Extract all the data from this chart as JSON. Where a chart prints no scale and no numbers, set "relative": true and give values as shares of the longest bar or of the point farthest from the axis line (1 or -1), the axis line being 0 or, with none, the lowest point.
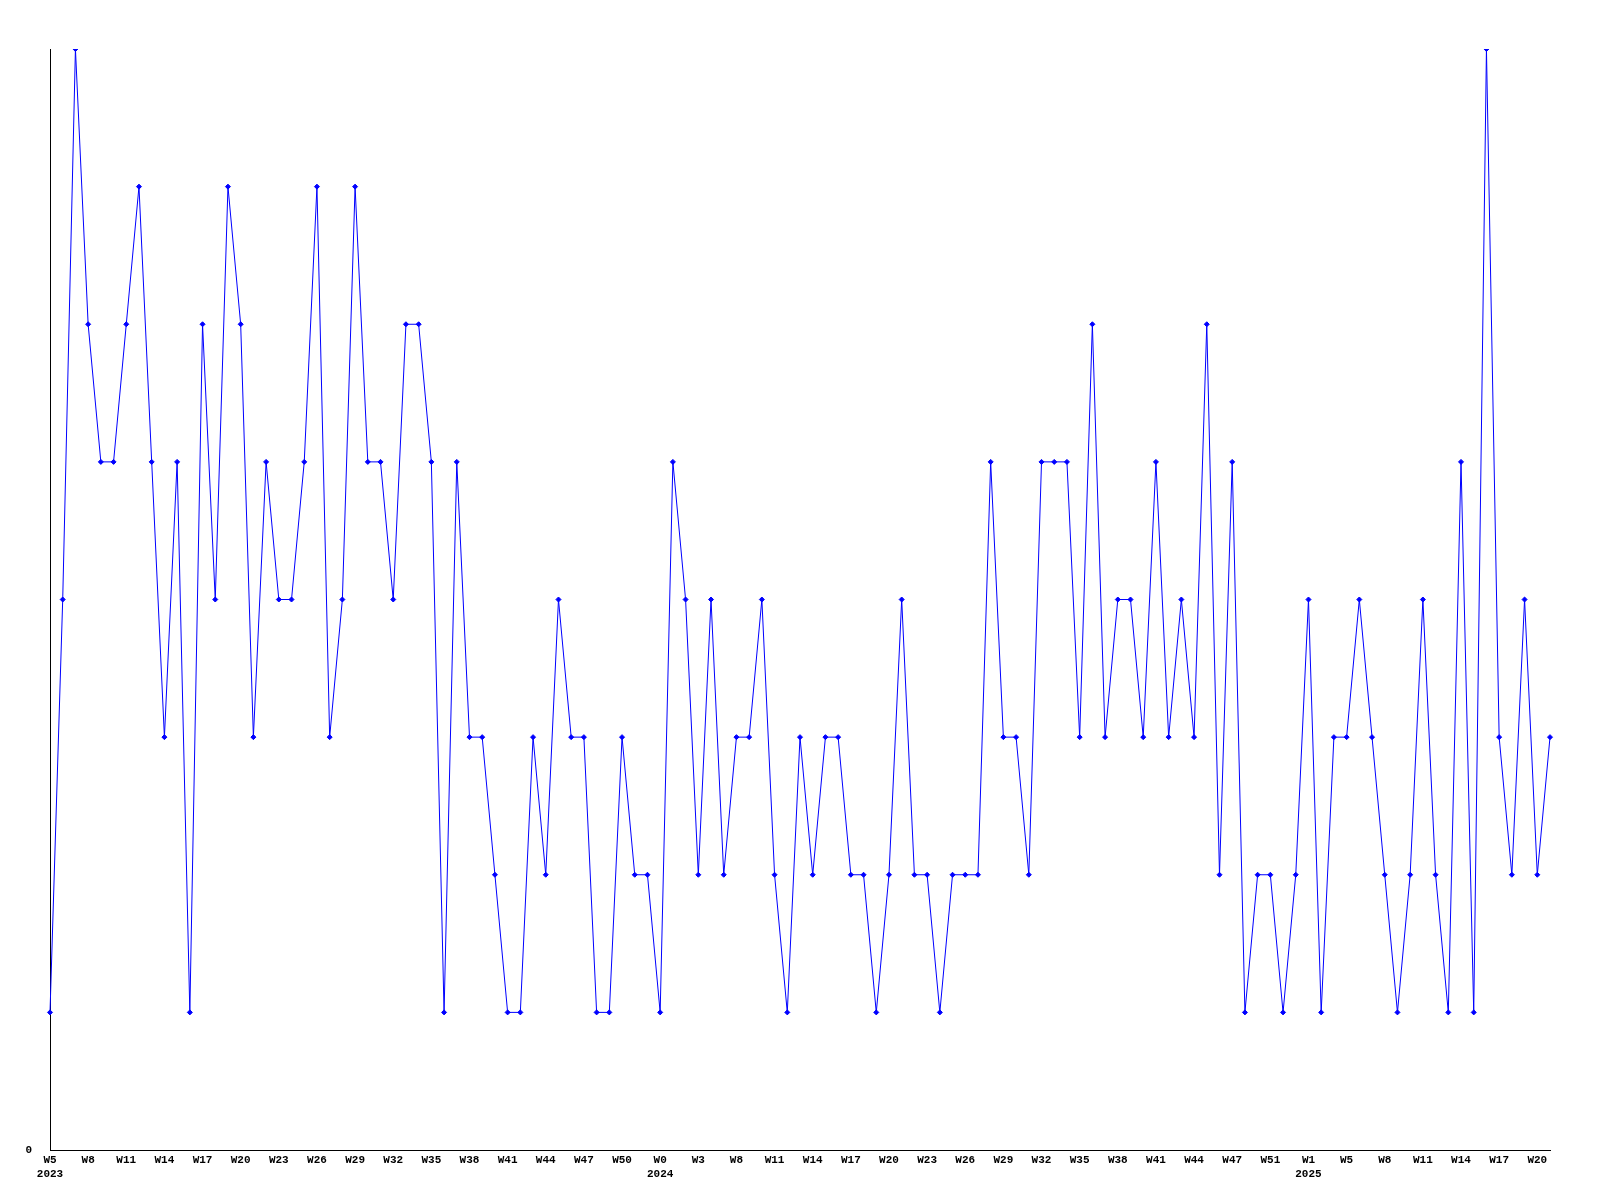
{
  "chart_data": {
    "type": "line",
    "relative": true,
    "annotations": [
      "0"
    ],
    "color": "#0000ff",
    "marker": "diamond",
    "grid": false,
    "legend": false,
    "categories": [
      "W5\n2023",
      null,
      null,
      "W8",
      null,
      null,
      "W11",
      null,
      null,
      "W14",
      null,
      null,
      "W17",
      null,
      null,
      "W20",
      null,
      null,
      "W23",
      null,
      null,
      "W26",
      null,
      null,
      "W29",
      null,
      null,
      "W32",
      null,
      null,
      "W35",
      null,
      null,
      "W38",
      null,
      null,
      "W41",
      null,
      null,
      "W44",
      null,
      null,
      "W47",
      null,
      null,
      "W50",
      null,
      null,
      "W0\n2024",
      null,
      null,
      "W3",
      null,
      null,
      "W8",
      null,
      null,
      "W11",
      null,
      null,
      "W14",
      null,
      null,
      "W17",
      null,
      null,
      "W20",
      null,
      null,
      "W23",
      null,
      null,
      "W26",
      null,
      null,
      "W29",
      null,
      null,
      "W32",
      null,
      null,
      "W35",
      null,
      null,
      "W38",
      null,
      null,
      "W41",
      null,
      null,
      "W44",
      null,
      null,
      "W47",
      null,
      null,
      "W51",
      null,
      null,
      "W1\n2025",
      null,
      null,
      "W5",
      null,
      null,
      "W8",
      null,
      null,
      "W11",
      null,
      null,
      "W14",
      null,
      null,
      "W17",
      null,
      null,
      "W20",
      null
    ],
    "values": [
      0.125,
      0.5,
      1,
      0.75,
      0.625,
      0.625,
      0.75,
      0.875,
      0.625,
      0.375,
      0.625,
      0.125,
      0.75,
      0.5,
      0.875,
      0.75,
      0.375,
      0.625,
      0.5,
      0.5,
      0.625,
      0.875,
      0.375,
      0.5,
      0.875,
      0.625,
      0.625,
      0.5,
      0.75,
      0.75,
      0.625,
      0.125,
      0.625,
      0.375,
      0.375,
      0.25,
      0.125,
      0.125,
      0.375,
      0.25,
      0.5,
      0.375,
      0.375,
      0.125,
      0.125,
      0.375,
      0.25,
      0.25,
      0.125,
      0.625,
      0.5,
      0.25,
      0.5,
      0.25,
      0.375,
      0.375,
      0.5,
      0.25,
      0.125,
      0.375,
      0.25,
      0.375,
      0.375,
      0.25,
      0.25,
      0.125,
      0.25,
      0.5,
      0.25,
      0.25,
      0.125,
      0.25,
      0.25,
      0.25,
      0.625,
      0.375,
      0.375,
      0.25,
      0.625,
      0.625,
      0.625,
      0.375,
      0.75,
      0.375,
      0.5,
      0.5,
      0.375,
      0.625,
      0.375,
      0.5,
      0.375,
      0.75,
      0.25,
      0.625,
      0.125,
      0.25,
      0.25,
      0.125,
      0.25,
      0.5,
      0.125,
      0.375,
      0.375,
      0.5,
      0.375,
      0.25,
      0.125,
      0.25,
      0.5,
      0.25,
      0.125,
      0.625,
      0.125,
      1,
      0.375,
      0.25,
      0.5,
      0.25,
      0.375
    ]
  }
}
